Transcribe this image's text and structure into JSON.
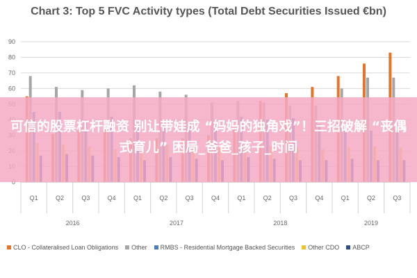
{
  "chart_data": {
    "type": "bar",
    "title": "Chart 3: Top 5 FVC Activity types (Total Debt Securities Issued €bn)",
    "ylim": [
      0,
      90
    ],
    "yticks": [
      "0",
      "10",
      "20",
      "30",
      "40",
      "50",
      "60",
      "70",
      "80",
      "90"
    ],
    "grid": true,
    "legend_position": "bottom",
    "categories": [
      "Q1",
      "Q2",
      "Q3",
      "Q4",
      "Q1",
      "Q2",
      "Q3",
      "Q4",
      "Q1",
      "Q2",
      "Q3",
      "Q4",
      "Q1",
      "Q2",
      "Q3"
    ],
    "year_groups": [
      {
        "label": "2016",
        "count": 4
      },
      {
        "label": "2017",
        "count": 4
      },
      {
        "label": "2018",
        "count": 4
      },
      {
        "label": "2019",
        "count": 3
      }
    ],
    "series": [
      {
        "name": "CLO - Collateralised Loan Obligations",
        "color": "#e8742a",
        "values": [
          55,
          31,
          33,
          34,
          28,
          28,
          28,
          30,
          35,
          52,
          57,
          61,
          68,
          76,
          83
        ]
      },
      {
        "name": "Other",
        "color": "#a6a6a6",
        "values": [
          68,
          61,
          59,
          60,
          62,
          58,
          56,
          51,
          52,
          51,
          49,
          49,
          60,
          67,
          67
        ]
      },
      {
        "name": "RMBS - Residential Mortgage Backed Securities",
        "color": "#4a7fbf",
        "values": [
          45,
          45,
          40,
          42,
          38,
          40,
          38,
          38,
          42,
          40,
          41,
          37,
          35,
          33,
          33
        ]
      },
      {
        "name": "Other CDO",
        "color": "#f2c12e",
        "values": [
          25,
          24,
          23,
          21,
          22,
          24,
          23,
          22,
          24,
          23,
          22,
          21,
          22,
          23,
          22
        ]
      },
      {
        "name": "ABCP",
        "color": "#2f4e8a",
        "values": [
          17,
          18,
          17,
          16,
          14,
          16,
          15,
          14,
          16,
          15,
          14,
          14,
          15,
          14,
          14
        ]
      }
    ]
  },
  "overlay": {
    "text": "可信的股票杠杆融资 别让带娃成 “妈妈的独角戏”！三招破解 “丧偶式育儿” 困局_爸爸_孩子_时间",
    "color": "#f4aac4"
  }
}
